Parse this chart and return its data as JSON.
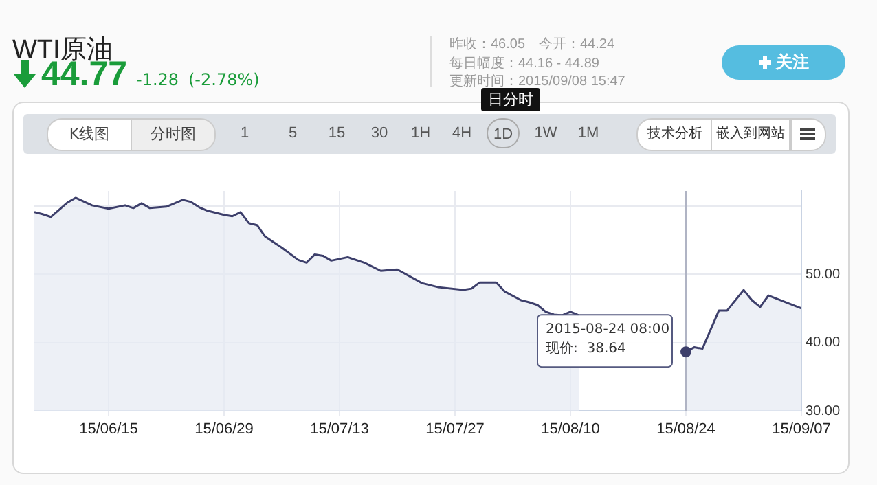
{
  "chart_data": {
    "type": "area",
    "title": "WTI原油",
    "annotations": [
      "44.77",
      "-1.28",
      "(-2.78%)",
      "昨收：46.05",
      "今开：44.24",
      "每日幅度：44.16 - 44.89",
      "更新时间：2015/09/08 15:47",
      "关注",
      "日分时",
      "K线图",
      "分时图",
      "15",
      "30",
      "1",
      "5",
      "1H",
      "4H",
      "1D",
      "1W",
      "1M",
      "技术分析",
      "嵌入到网站",
      {
        "text": "2015-08-24 08:00\n现价:  38.64",
        "x": "2015-08-24",
        "y": 38.64
      }
    ],
    "x": [
      "2015-06-06",
      "2015-06-07",
      "2015-06-08",
      "2015-06-10",
      "2015-06-11",
      "2015-06-13",
      "2015-06-15",
      "2015-06-17",
      "2015-06-18",
      "2015-06-19",
      "2015-06-20",
      "2015-06-22",
      "2015-06-24",
      "2015-06-25",
      "2015-06-26",
      "2015-06-27",
      "2015-06-29",
      "2015-06-30",
      "2015-07-01",
      "2015-07-02",
      "2015-07-03",
      "2015-07-04",
      "2015-07-06",
      "2015-07-08",
      "2015-07-09",
      "2015-07-10",
      "2015-07-11",
      "2015-07-12",
      "2015-07-14",
      "2015-07-16",
      "2015-07-18",
      "2015-07-20",
      "2015-07-23",
      "2015-07-25",
      "2015-07-28",
      "2015-07-29",
      "2015-07-30",
      "2015-08-01",
      "2015-08-02",
      "2015-08-04",
      "2015-08-05",
      "2015-08-06",
      "2015-08-07",
      "2015-08-08",
      "2015-08-09",
      "2015-08-10",
      "2015-08-11",
      "2015-08-13",
      "2015-08-15",
      "2015-08-18",
      "2015-08-20",
      "2015-08-22",
      "2015-08-24",
      "2015-08-25",
      "2015-08-26",
      "2015-08-28",
      "2015-08-29",
      "2015-08-31",
      "2015-09-01",
      "2015-09-02",
      "2015-09-03",
      "2015-09-07"
    ],
    "series": [
      {
        "color": "#3d3f6b",
        "values": [
          59.1,
          58.8,
          58.4,
          60.5,
          61.2,
          60.1,
          59.6,
          60.1,
          59.7,
          60.4,
          59.7,
          59.9,
          60.9,
          60.6,
          59.8,
          59.3,
          58.7,
          58.5,
          59.1,
          57.5,
          57.2,
          55.5,
          53.9,
          52.1,
          51.7,
          52.9,
          52.7,
          52.0,
          52.5,
          51.7,
          50.5,
          50.7,
          48.7,
          48.1,
          47.7,
          47.9,
          48.8,
          48.8,
          47.5,
          46.2,
          45.9,
          45.5,
          44.5,
          44.1,
          44.0,
          44.5,
          44.0,
          null,
          null,
          null,
          null,
          null,
          38.64,
          39.3,
          39.1,
          44.7,
          44.7,
          47.7,
          46.2,
          45.2,
          46.9,
          45.0
        ]
      }
    ],
    "xlim": [
      "2015-06-06",
      "2015-09-07"
    ],
    "xticks": [
      {
        "value": "2015-06-15",
        "label": "15/06/15"
      },
      {
        "value": "2015-06-29",
        "label": "15/06/29"
      },
      {
        "value": "2015-07-13",
        "label": "15/07/13"
      },
      {
        "value": "2015-07-27",
        "label": "15/07/27"
      },
      {
        "value": "2015-08-10",
        "label": "15/08/10"
      },
      {
        "value": "2015-08-24",
        "label": "15/08/24"
      },
      {
        "value": "2015-09-07",
        "label": "15/09/07"
      }
    ],
    "ylim": [
      30,
      62.2
    ],
    "yticks": [
      {
        "value": 30,
        "label": "30.00"
      },
      {
        "value": 40,
        "label": "40.00"
      },
      {
        "value": 50,
        "label": "50.00"
      },
      {
        "value": 60,
        "label": null
      }
    ],
    "ref_lines": [
      {
        "axis": "x",
        "value": "2015-08-24",
        "color": "#b0b4c4"
      }
    ],
    "grid": true
  }
}
